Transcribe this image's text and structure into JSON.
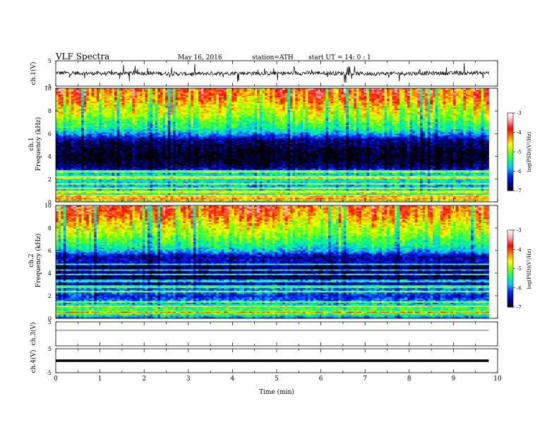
{
  "header": {
    "title": "VLF  Spectra",
    "date": "May 16, 2016",
    "station": "station=ATH",
    "start": "start  UT =   14: 0  : 1"
  },
  "colors": {
    "background": "#ffffff",
    "axes": "#000000",
    "trace": "#000000",
    "colormap": [
      "#000000",
      "#0000a0",
      "#0028ff",
      "#00c8ff",
      "#00ff80",
      "#80ff00",
      "#ffff00",
      "#ff8000",
      "#ff0000",
      "#ffa0a0",
      "#ffffff"
    ]
  },
  "chart_data": [
    {
      "type": "line",
      "panel": "ch.1",
      "ylabel": "ch.1(V)",
      "ylim": [
        -5,
        5
      ],
      "yticks": [
        "5",
        "-5"
      ],
      "xlim": [
        0,
        10
      ],
      "description_series": [
        {
          "values_x": [
            0,
            1,
            2,
            3,
            4,
            5,
            6,
            7,
            8,
            9,
            9.8
          ],
          "values_y": [
            0.2,
            0.0,
            0.1,
            -0.2,
            0.1,
            0.0,
            0.2,
            -0.1,
            0.0,
            0.1,
            0.2
          ]
        }
      ]
    },
    {
      "type": "heatmap",
      "panel": "ch.1",
      "ylabel": "ch.1\nFrequency (kHz)",
      "ylim": [
        0,
        10
      ],
      "yticks": [
        "0",
        "2",
        "4",
        "6",
        "8",
        "10"
      ],
      "xlim": [
        0,
        10
      ],
      "data_xmax": 9.8,
      "colorbar": {
        "label": "log(PSD)(V²/Hz)",
        "range": [
          -7,
          -3
        ],
        "ticks": [
          "-3",
          "-4",
          "-5",
          "-6",
          "-7"
        ]
      },
      "freq_profile_khz": [
        0,
        0.5,
        1,
        1.5,
        2,
        2.5,
        3,
        3.5,
        4,
        4.5,
        5,
        5.5,
        6,
        6.5,
        7,
        7.5,
        8,
        8.5,
        9,
        9.5,
        10
      ],
      "log_psd_profile": [
        -4.9,
        -5.3,
        -5.6,
        -5.8,
        -5.5,
        -5.7,
        -6.6,
        -6.9,
        -7.0,
        -6.9,
        -6.8,
        -6.6,
        -5.9,
        -5.4,
        -5.2,
        -4.9,
        -4.7,
        -4.5,
        -4.2,
        -4.0,
        -3.9
      ]
    },
    {
      "type": "heatmap",
      "panel": "ch.2",
      "ylabel": "ch.2\nFrequency (kHz)",
      "ylim": [
        0,
        10
      ],
      "yticks": [
        "0",
        "2",
        "4",
        "6",
        "8",
        "10"
      ],
      "xlim": [
        0,
        10
      ],
      "data_xmax": 9.8,
      "colorbar": {
        "label": "log(PSD)(V²/Hz)",
        "range": [
          -7,
          -3
        ],
        "ticks": [
          "-3",
          "-4",
          "-5",
          "-6",
          "-7"
        ]
      },
      "freq_profile_khz": [
        0,
        0.5,
        1,
        1.5,
        2,
        2.5,
        3,
        3.5,
        4,
        4.5,
        5,
        5.5,
        6,
        6.5,
        7,
        7.5,
        8,
        8.5,
        9,
        9.5,
        10
      ],
      "log_psd_profile": [
        -6.2,
        -5.0,
        -5.4,
        -5.9,
        -6.3,
        -5.9,
        -6.4,
        -6.8,
        -6.6,
        -6.8,
        -6.4,
        -6.6,
        -5.8,
        -5.4,
        -5.2,
        -4.9,
        -4.7,
        -4.5,
        -4.2,
        -4.0,
        -3.9
      ]
    },
    {
      "type": "line",
      "panel": "ch.3",
      "ylabel": "ch.3(V)",
      "ylim": [
        -5,
        5
      ],
      "yticks": [
        "5"
      ],
      "xlim": [
        0,
        10
      ],
      "description_series": [
        {
          "values_x": [
            0,
            9.8
          ],
          "values_y": [
            1.5,
            1.5
          ]
        }
      ]
    },
    {
      "type": "line",
      "panel": "ch.4",
      "ylabel": "ch.4(V)",
      "ylim": [
        -5,
        5
      ],
      "yticks": [
        "5",
        "-5"
      ],
      "xlim": [
        0,
        10
      ],
      "description_series": [
        {
          "values_x": [
            0,
            9.8
          ],
          "values_y": [
            0,
            0
          ]
        }
      ]
    }
  ],
  "xaxis": {
    "label": "Time  (min)",
    "ticks": [
      "0",
      "1",
      "2",
      "3",
      "4",
      "5",
      "6",
      "7",
      "8",
      "9",
      "10"
    ]
  }
}
